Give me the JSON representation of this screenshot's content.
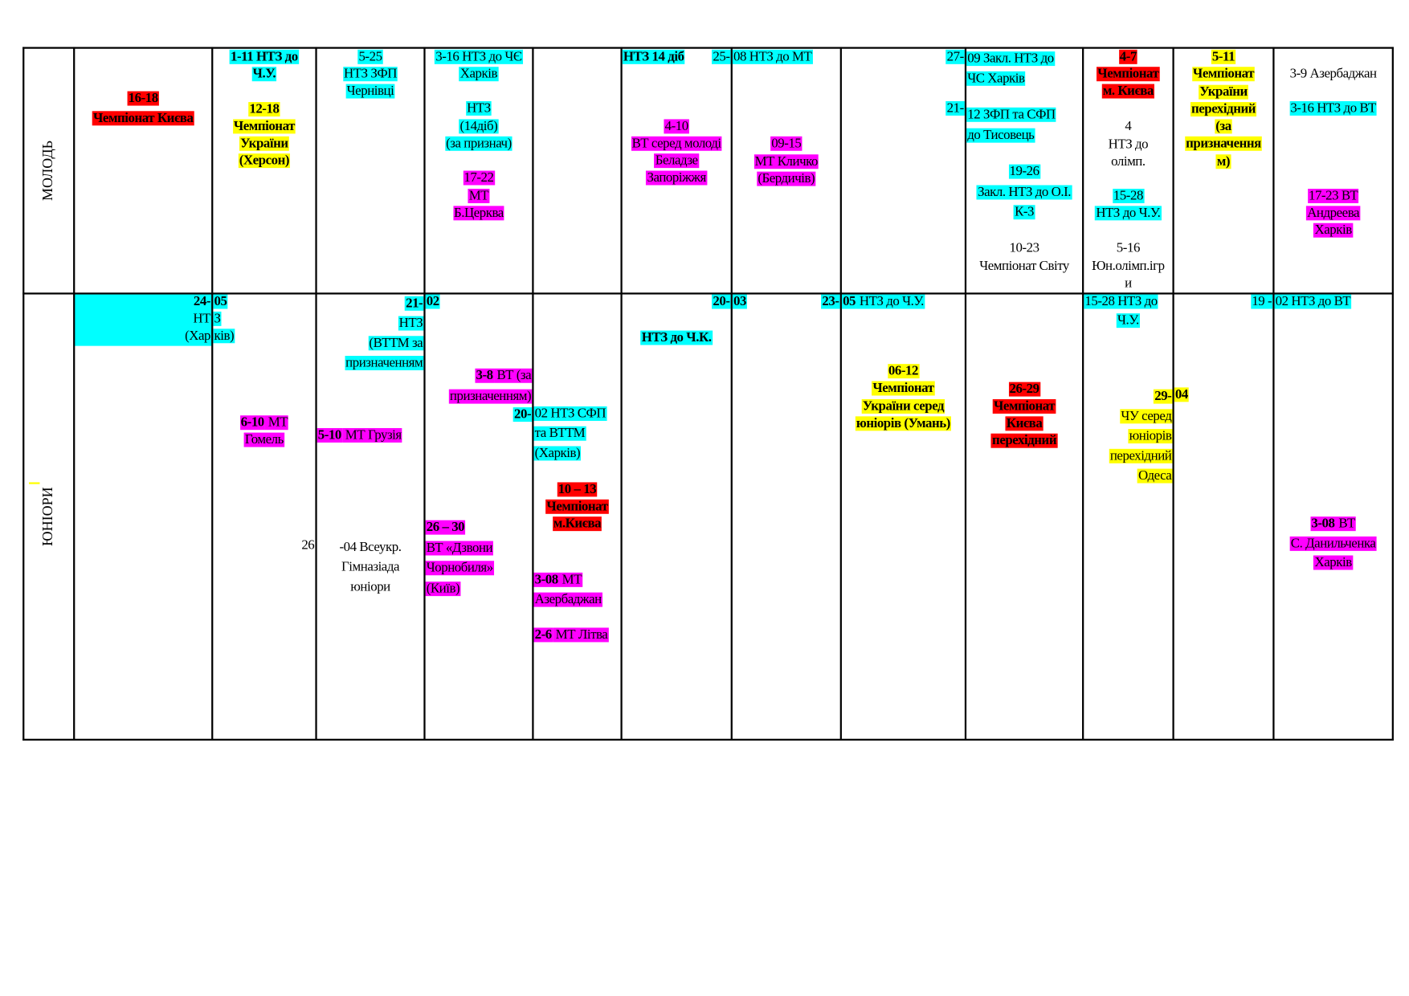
{
  "colors": {
    "cyan": "#00ffff",
    "magenta": "#ff00ff",
    "red": "#ff0000",
    "yellow": "#ffff00",
    "none": "transparent"
  },
  "rows": [
    {
      "label": "МОЛОДЬ"
    },
    {
      "label": "ЮНІОРИ"
    }
  ],
  "events": [
    {
      "color": "red",
      "bold": true,
      "lines": [
        "16-18",
        "Чемпіонат Києва"
      ]
    },
    {
      "color": "cyan",
      "bold": true,
      "lines": [
        "1-11 НТЗ до",
        "Ч.У."
      ]
    },
    {
      "color": "yellow",
      "bold": true,
      "lines": [
        "12-18",
        "Чемпіонат",
        "України",
        "(Херсон)"
      ]
    },
    {
      "color": "cyan",
      "lines": [
        "5-25",
        "НТЗ ЗФП",
        "Чернівці"
      ]
    },
    {
      "color": "cyan",
      "lines": [
        "3-16 НТЗ до ЧЄ",
        "Харків"
      ]
    },
    {
      "color": "cyan",
      "lines": [
        "НТЗ",
        "(14діб)",
        "(за признач)"
      ]
    },
    {
      "color": "magenta",
      "lines": [
        "17-22",
        "МТ",
        "Б.Церква"
      ]
    },
    {
      "color": "cyan",
      "bold": true,
      "lines": [
        "НТЗ 14 діб"
      ]
    },
    {
      "color": "cyan",
      "lines": [
        "25-"
      ]
    },
    {
      "color": "magenta",
      "lines": [
        "4-10",
        "ВТ серед молоді",
        "Беладзе",
        "Запоріжжя"
      ]
    },
    {
      "color": "cyan",
      "lines": [
        "08 НТЗ до МТ"
      ]
    },
    {
      "color": "magenta",
      "lines": [
        "09-15",
        "МТ Кличко",
        "(Бердичів)"
      ]
    },
    {
      "color": "cyan",
      "lines": [
        "27-"
      ]
    },
    {
      "color": "cyan",
      "lines": [
        "21-"
      ]
    },
    {
      "color": "cyan",
      "lines": [
        "09 Закл. НТЗ до",
        "ЧС Харків"
      ]
    },
    {
      "color": "cyan",
      "lines": [
        "12 ЗФП та СФП",
        "до Тисовець"
      ]
    },
    {
      "color": "cyan",
      "lines": [
        "19-26",
        "Закл. НТЗ до О.І.",
        "К-3"
      ]
    },
    {
      "color": "none",
      "lines": [
        "10-23",
        "Чемпіонат Світу"
      ]
    },
    {
      "color": "red",
      "bold": true,
      "lines": [
        "4-7",
        "Чемпіонат",
        "м. Києва"
      ]
    },
    {
      "color": "none",
      "lines": [
        "4",
        "НТЗ до",
        "олімп."
      ]
    },
    {
      "color": "cyan",
      "lines": [
        "15-28",
        "НТЗ до Ч.У."
      ]
    },
    {
      "color": "none",
      "lines": [
        "5-16",
        "Юн.олімп.ігр",
        "и"
      ]
    },
    {
      "color": "yellow",
      "bold": true,
      "lines": [
        "5-11",
        "Чемпіонат",
        "України",
        "перехідний",
        "(за",
        "призначення",
        "м)"
      ]
    },
    {
      "color": "none",
      "lines": [
        "3-9 Азербаджан"
      ]
    },
    {
      "color": "cyan",
      "lines": [
        "3-16  НТЗ до ВТ"
      ]
    },
    {
      "color": "magenta",
      "lines": [
        "17-23 ВТ",
        "Андреева",
        "Харків"
      ]
    },
    {
      "color": "cyan",
      "lines": [
        [
          "24-",
          ""
        ],
        "НТ",
        "(Хар"
      ]
    },
    {
      "color": "cyan",
      "lines": [
        [
          "05",
          ""
        ],
        "З",
        "ків)"
      ]
    },
    {
      "color": "magenta",
      "lines": [
        [
          "6-10",
          " МТ"
        ],
        "Гомель"
      ]
    },
    {
      "color": "cyan",
      "lines": [
        [
          "21-",
          ""
        ],
        "НТЗ",
        "(ВТТМ за",
        "призначенням"
      ]
    },
    {
      "color": "magenta",
      "lines": [
        [
          "5-10",
          " МТ Грузія"
        ]
      ]
    },
    {
      "color": "none",
      "lines": [
        "26"
      ]
    },
    {
      "color": "none",
      "lines": [
        "-04 Всеукр.",
        "Гімназіада",
        "юніори"
      ]
    },
    {
      "color": "cyan",
      "lines": [
        [
          "02",
          ""
        ]
      ]
    },
    {
      "color": "magenta",
      "lines": [
        [
          "3-8",
          " ВТ (за"
        ],
        "призначенням)"
      ]
    },
    {
      "color": "cyan",
      "lines": [
        [
          "20-",
          ""
        ]
      ]
    },
    {
      "color": "magenta",
      "lines": [
        [
          "26 – 30",
          ""
        ],
        "ВТ «Дзвони",
        "Чорнобиля»",
        "(Київ)"
      ]
    },
    {
      "color": "cyan",
      "lines": [
        "02 НТЗ СФП",
        "та ВТТМ",
        "(Харків)"
      ]
    },
    {
      "color": "red",
      "bold": true,
      "lines": [
        "10 – 13",
        "Чемпіонат",
        "м.Києва"
      ]
    },
    {
      "color": "magenta",
      "lines": [
        [
          "3-08",
          " МТ"
        ],
        "Азербаджан"
      ]
    },
    {
      "color": "magenta",
      "lines": [
        [
          "2-6",
          " МТ Літва"
        ]
      ]
    },
    {
      "color": "cyan",
      "lines": [
        [
          "20-",
          ""
        ]
      ]
    },
    {
      "color": "cyan",
      "bold": true,
      "lines": [
        "НТЗ до Ч.К."
      ]
    },
    {
      "color": "cyan",
      "lines": [
        [
          "03",
          ""
        ]
      ]
    },
    {
      "color": "cyan",
      "lines": [
        [
          "23-",
          ""
        ]
      ]
    },
    {
      "color": "cyan",
      "lines": [
        [
          "05",
          " НТЗ до Ч.У."
        ]
      ]
    },
    {
      "color": "yellow",
      "bold": true,
      "lines": [
        "06-12",
        "Чемпіонат",
        "України серед",
        "юніорів (Умань)"
      ]
    },
    {
      "color": "red",
      "bold": true,
      "lines": [
        "26-29",
        "Чемпіонат",
        "Києва",
        "перехідний"
      ]
    },
    {
      "color": "cyan",
      "lines": [
        "15-28 НТЗ до"
      ]
    },
    {
      "color": "cyan",
      "lines": [
        "Ч.У."
      ]
    },
    {
      "color": "yellow",
      "lines": [
        [
          "29-",
          ""
        ],
        "ЧУ серед",
        "юніорів",
        "перехідний",
        "Одеса"
      ]
    },
    {
      "color": "yellow",
      "lines": [
        [
          "04",
          ""
        ]
      ]
    },
    {
      "color": "cyan",
      "lines": [
        "19 -"
      ]
    },
    {
      "color": "cyan",
      "lines": [
        "02 НТЗ  до ВТ"
      ]
    },
    {
      "color": "magenta",
      "lines": [
        [
          "3-08",
          " ВТ"
        ],
        "С. Данильченка",
        "Харків"
      ]
    }
  ]
}
